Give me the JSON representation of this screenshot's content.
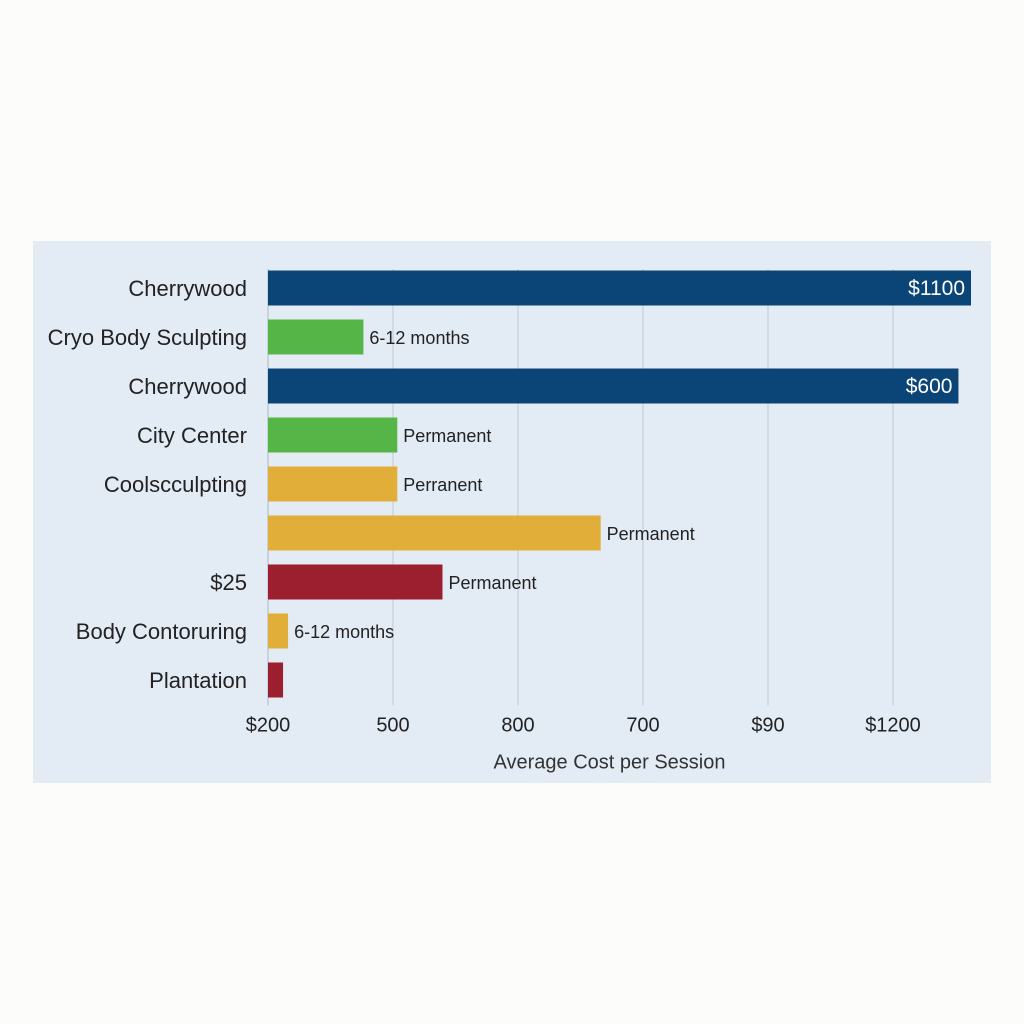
{
  "chart_data": {
    "type": "bar",
    "orientation": "horizontal",
    "title": "",
    "xlabel": "Average Cost per Session",
    "ylabel": "",
    "x_tick_labels": [
      "$200",
      "500",
      "800",
      "700",
      "$90",
      "$1200"
    ],
    "xlim": [
      0,
      5.6
    ],
    "grid": true,
    "legend": "none",
    "categories": [
      "Cherrywood",
      "Cryo Body Sculpting",
      "Cherrywood",
      "City Center",
      "Coolscculpting",
      "",
      "$25",
      "Body Contoruring",
      "Plantation"
    ],
    "values": [
      5.6,
      0.76,
      5.5,
      1.03,
      1.03,
      2.65,
      1.39,
      0.16,
      0.12
    ],
    "bar_labels": [
      "$1100",
      "6-12 months",
      "$600",
      "Permanent",
      "Perranent",
      "Permanent",
      "Permanent",
      "6-12 months",
      ""
    ],
    "label_inside": [
      true,
      false,
      true,
      false,
      false,
      false,
      false,
      false,
      false
    ],
    "bar_colors": [
      "#0b4577",
      "#55b546",
      "#0b4577",
      "#55b546",
      "#e1ae3a",
      "#e1ae3a",
      "#9c1f30",
      "#e1ae3a",
      "#9c1f30"
    ]
  }
}
